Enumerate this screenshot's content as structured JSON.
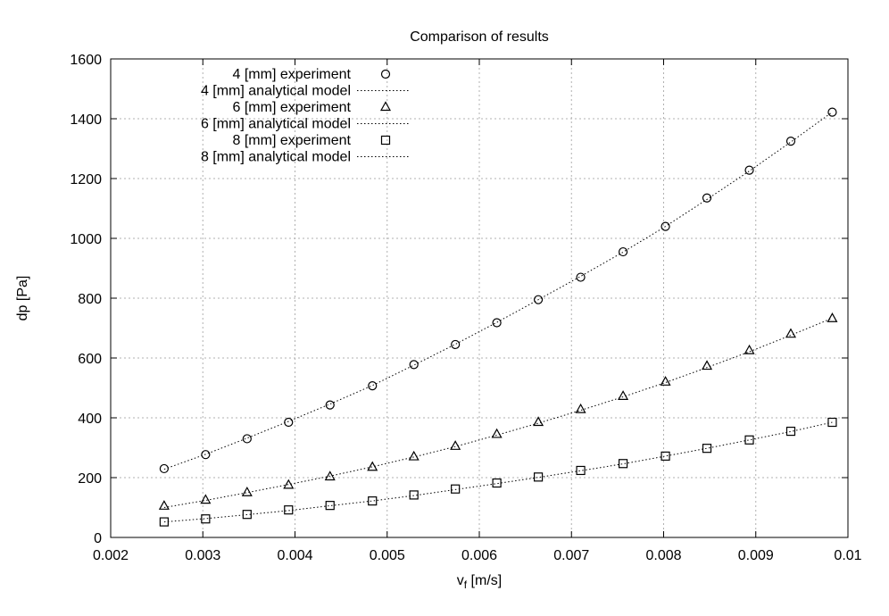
{
  "chart_data": {
    "type": "scatter",
    "title": "Comparison of results",
    "xlabel_main": "v",
    "xlabel_sub": "f",
    "xlabel_unit": " [m/s]",
    "ylabel": "dp [Pa]",
    "xlim": [
      0.002,
      0.01
    ],
    "ylim": [
      0,
      1600
    ],
    "xticks": [
      "0.002",
      "0.003",
      "0.004",
      "0.005",
      "0.006",
      "0.007",
      "0.008",
      "0.009",
      "0.01"
    ],
    "xtick_values": [
      0.002,
      0.003,
      0.004,
      0.005,
      0.006,
      0.007,
      0.008,
      0.009,
      0.01
    ],
    "yticks": [
      "0",
      "200",
      "400",
      "600",
      "800",
      "1000",
      "1200",
      "1400",
      "1600"
    ],
    "ytick_values": [
      0,
      200,
      400,
      600,
      800,
      1000,
      1200,
      1400,
      1600
    ],
    "grid": true,
    "legend_position": "top-left",
    "x": [
      0.00258,
      0.00303,
      0.00348,
      0.00393,
      0.00438,
      0.00484,
      0.00529,
      0.00574,
      0.00619,
      0.00664,
      0.0071,
      0.00756,
      0.00802,
      0.00847,
      0.00893,
      0.00938,
      0.00983
    ],
    "series": [
      {
        "name": "4 [mm] experiment",
        "kind": "points",
        "marker": "circle",
        "values": [
          230,
          277,
          330,
          385,
          443,
          507,
          578,
          645,
          718,
          795,
          870,
          955,
          1040,
          1135,
          1228,
          1325,
          1422
        ]
      },
      {
        "name": "4 [mm] analytical model",
        "kind": "line",
        "values": [
          228,
          278,
          332,
          388,
          446,
          508,
          576,
          646,
          719,
          795,
          873,
          954,
          1040,
          1130,
          1225,
          1322,
          1422
        ]
      },
      {
        "name": "6 [mm] experiment",
        "kind": "points",
        "marker": "triangle",
        "values": [
          105,
          125,
          150,
          175,
          203,
          235,
          270,
          305,
          345,
          385,
          428,
          472,
          520,
          573,
          625,
          680,
          732
        ]
      },
      {
        "name": "6 [mm] analytical model",
        "kind": "line",
        "values": [
          100,
          124,
          150,
          177,
          205,
          236,
          269,
          304,
          342,
          382,
          425,
          470,
          518,
          568,
          621,
          676,
          733
        ]
      },
      {
        "name": "8 [mm] experiment",
        "kind": "points",
        "marker": "square",
        "values": [
          52,
          62,
          77,
          92,
          107,
          122,
          142,
          162,
          182,
          202,
          224,
          247,
          272,
          298,
          326,
          355,
          385
        ]
      },
      {
        "name": "8 [mm] analytical model",
        "kind": "line",
        "values": [
          52,
          63,
          76,
          90,
          106,
          122,
          140,
          160,
          180,
          201,
          223,
          246,
          272,
          298,
          326,
          354,
          385
        ]
      }
    ]
  }
}
